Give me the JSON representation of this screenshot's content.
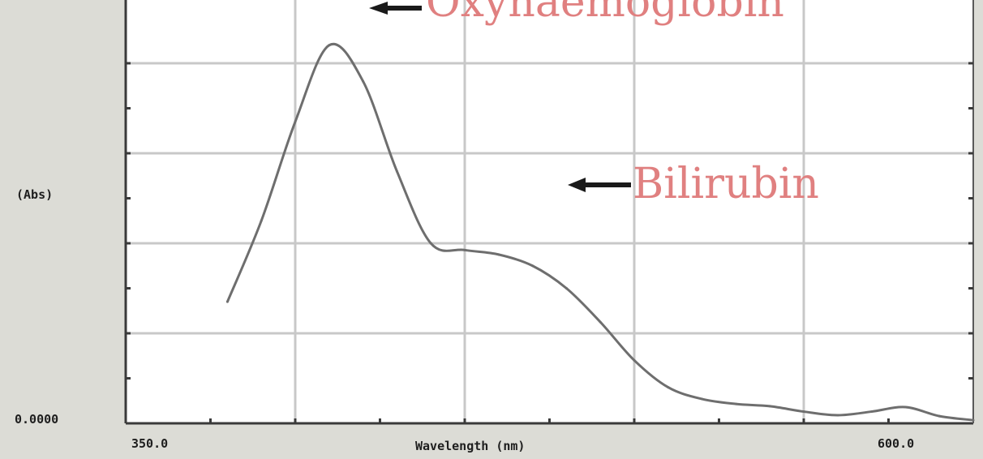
{
  "chart_data": {
    "type": "line",
    "title": "",
    "xlabel": "Wavelength (nm)",
    "ylabel": "(Abs)",
    "xlim": [
      350.0,
      600.0
    ],
    "x_tick_labels": {
      "min": "350.0",
      "max": "600.0"
    },
    "y_tick_labels": {
      "min": "0.0000"
    },
    "grid": true,
    "series": [
      {
        "x": [
          380,
          390,
          400,
          410,
          420,
          430,
          440,
          450,
          460,
          470,
          480,
          490,
          500,
          510,
          520,
          530,
          540,
          550,
          560,
          570,
          580,
          590,
          600
        ],
        "y": [
          0.27,
          0.45,
          0.67,
          0.84,
          0.76,
          0.56,
          0.4,
          0.385,
          0.375,
          0.35,
          0.3,
          0.225,
          0.14,
          0.08,
          0.054,
          0.043,
          0.038,
          0.026,
          0.018,
          0.026,
          0.036,
          0.016,
          0.007
        ]
      }
    ],
    "annotations": [
      {
        "text": "Oxyhaemoglobin",
        "x": 425,
        "y": 0.84
      },
      {
        "text": "Bilirubin",
        "x": 475,
        "y": 0.34
      }
    ]
  }
}
